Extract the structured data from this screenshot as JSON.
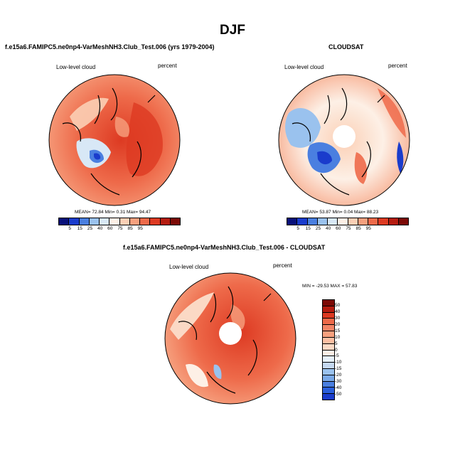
{
  "figure": {
    "title": "DJF",
    "colors": {
      "abs_scale": [
        "#08107a",
        "#1a3ccc",
        "#4a7fe0",
        "#9ac2ee",
        "#d8e8f6",
        "#fdf0e6",
        "#fbcfb5",
        "#f6a07e",
        "#ee6a4a",
        "#dd3a22",
        "#b51c10",
        "#7c0a06"
      ],
      "diff_scale": [
        "#7c0a06",
        "#b51c10",
        "#dd3a22",
        "#ee6a4a",
        "#f28466",
        "#f6a07e",
        "#fbbfa3",
        "#fbd9c5",
        "#fdf0e6",
        "#e6f0fb",
        "#c5d9f1",
        "#9ac2ee",
        "#7aa9e8",
        "#4a7fe0",
        "#2a5fdc",
        "#1a3ccc",
        "#0d22a0",
        "#08107a"
      ]
    },
    "panels": [
      {
        "id": "model",
        "title": "f.e15a6.FAMIPC5.ne0np4-VarMeshNH3.Club_Test.006 (yrs 1979-2004)",
        "left_label": "Low-level cloud",
        "right_label": "percent",
        "stats": {
          "mean": "72.84",
          "min": "0.31",
          "max": "94.47"
        },
        "stats_text": "MEAN=  72.84  Min=   0.31  Max=  94.47",
        "colorbar_labels": [
          "5",
          "15",
          "25",
          "40",
          "60",
          "75",
          "85",
          "95"
        ]
      },
      {
        "id": "cloudsat",
        "title": "CLOUDSAT",
        "left_label": "Low-level cloud",
        "right_label": "percent",
        "stats": {
          "mean": "53.87",
          "min": "0.04",
          "max": "88.23"
        },
        "stats_text": "MEAN=  53.87  Min=   0.04  Max=  88.23",
        "colorbar_labels": [
          "5",
          "15",
          "25",
          "40",
          "60",
          "75",
          "85",
          "95"
        ]
      },
      {
        "id": "difference",
        "title": "f.e15a6.FAMIPC5.ne0np4-VarMeshNH3.Club_Test.006 - CLOUDSAT",
        "left_label": "Low-level cloud",
        "right_label": "percent",
        "stats": {
          "min": "-29.53",
          "max": "57.83"
        },
        "stats_text": "MIN = -29.53 MAX =  57.83",
        "colorbar_labels": [
          "50",
          "40",
          "30",
          "20",
          "15",
          "10",
          "5",
          "0",
          "-5",
          "-10",
          "-15",
          "-20",
          "-30",
          "-40",
          "-50"
        ]
      }
    ]
  }
}
